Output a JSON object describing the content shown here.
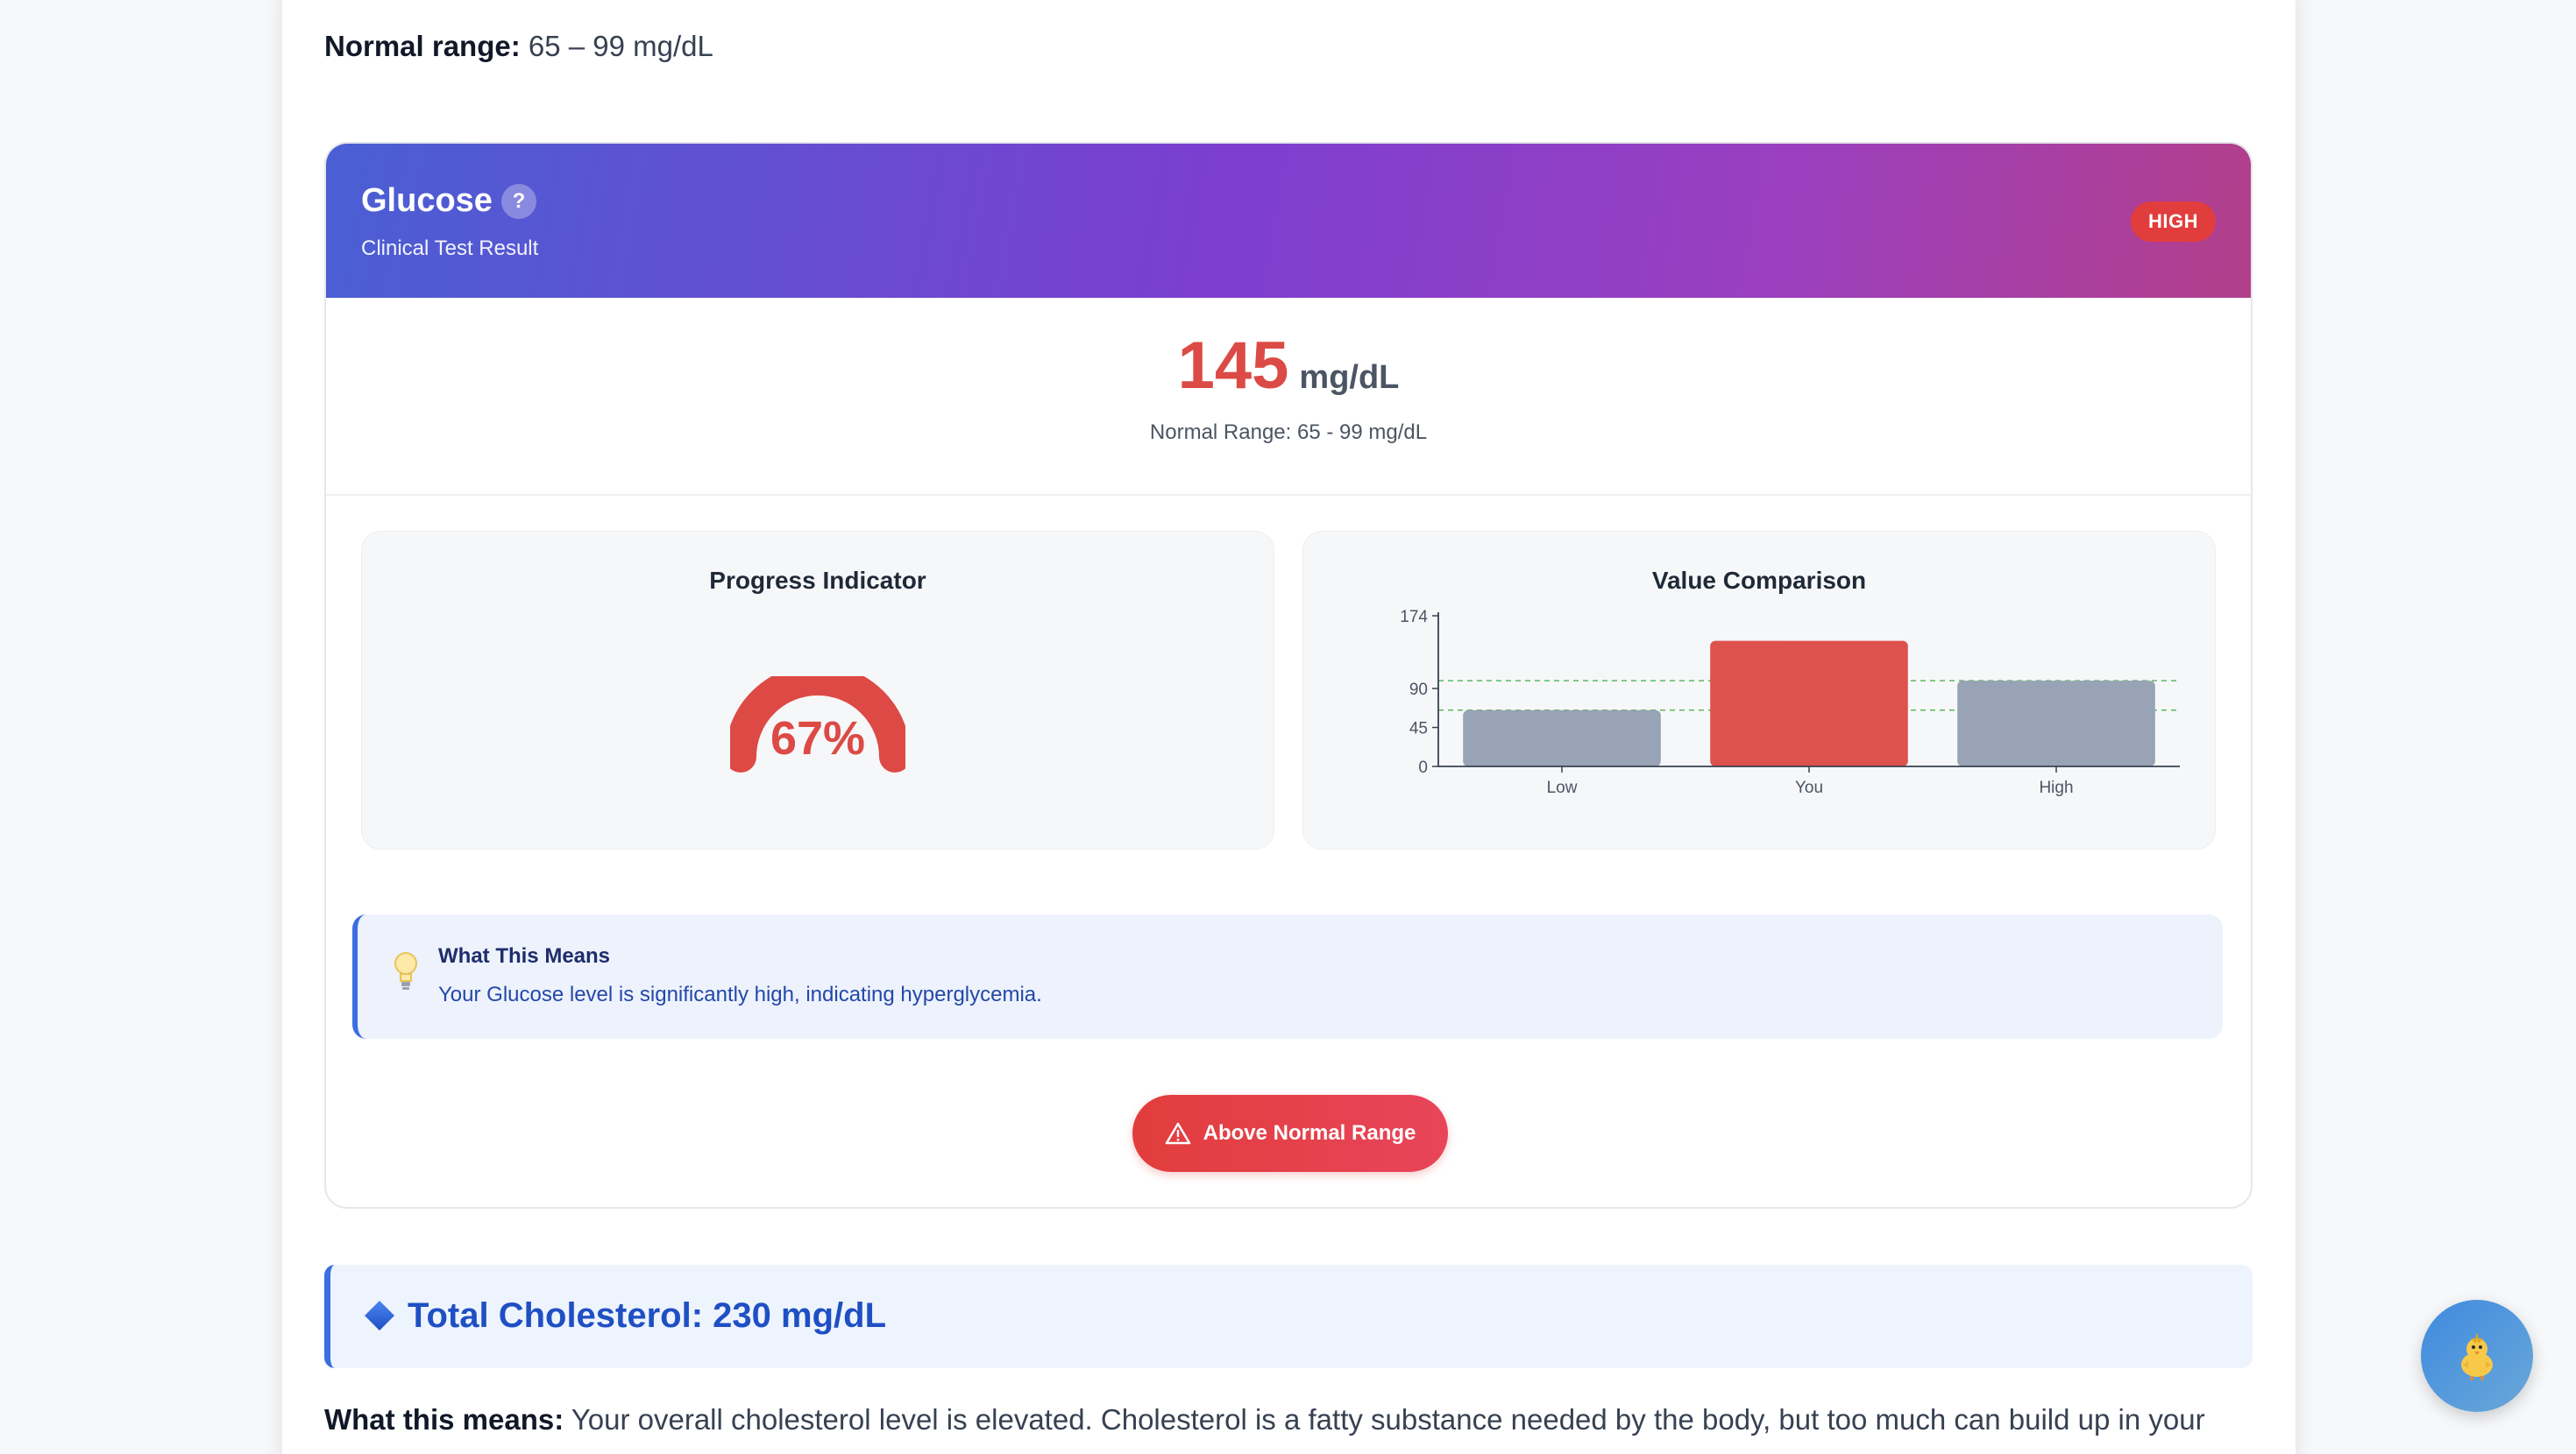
{
  "top": {
    "normal_range_label": "Normal range:",
    "normal_range_value": " 65 – 99 mg/dL"
  },
  "card": {
    "title": "Glucose",
    "help": "?",
    "subtitle": "Clinical Test Result",
    "status": "HIGH",
    "value": "145",
    "unit": "mg/dL",
    "range_text": "Normal Range: 65 - 99 mg/dL",
    "gauge": {
      "title": "Progress Indicator",
      "percent_text": "67%",
      "percent": 67
    },
    "comparison": {
      "title": "Value Comparison"
    },
    "info": {
      "title": "What This Means",
      "text": "Your Glucose level is significantly high, indicating hyperglycemia."
    },
    "button_label": "Above Normal Range"
  },
  "chart_data": {
    "type": "bar",
    "categories": [
      "Low",
      "You",
      "High"
    ],
    "values": [
      65,
      145,
      99
    ],
    "yticks": [
      0,
      45,
      90,
      174
    ],
    "ylim": [
      0,
      174
    ],
    "reference_lines": [
      65,
      99
    ],
    "colors": {
      "default": "#98a3b5",
      "highlight": "#dd524d",
      "reference": "#5cb85c"
    }
  },
  "next_section": {
    "title": "Total Cholesterol: 230 mg/dL",
    "meaning_label": "What this means:",
    "meaning_text": " Your overall cholesterol level is elevated. Cholesterol is a fatty substance needed by the body, but too much can build up in your"
  },
  "colors": {
    "accent": "#3b6fe0",
    "danger": "#e23d3d"
  },
  "icons": {
    "fab": "chick-icon",
    "info": "lightbulb-icon",
    "button": "warning-icon",
    "section": "diamond-icon"
  }
}
